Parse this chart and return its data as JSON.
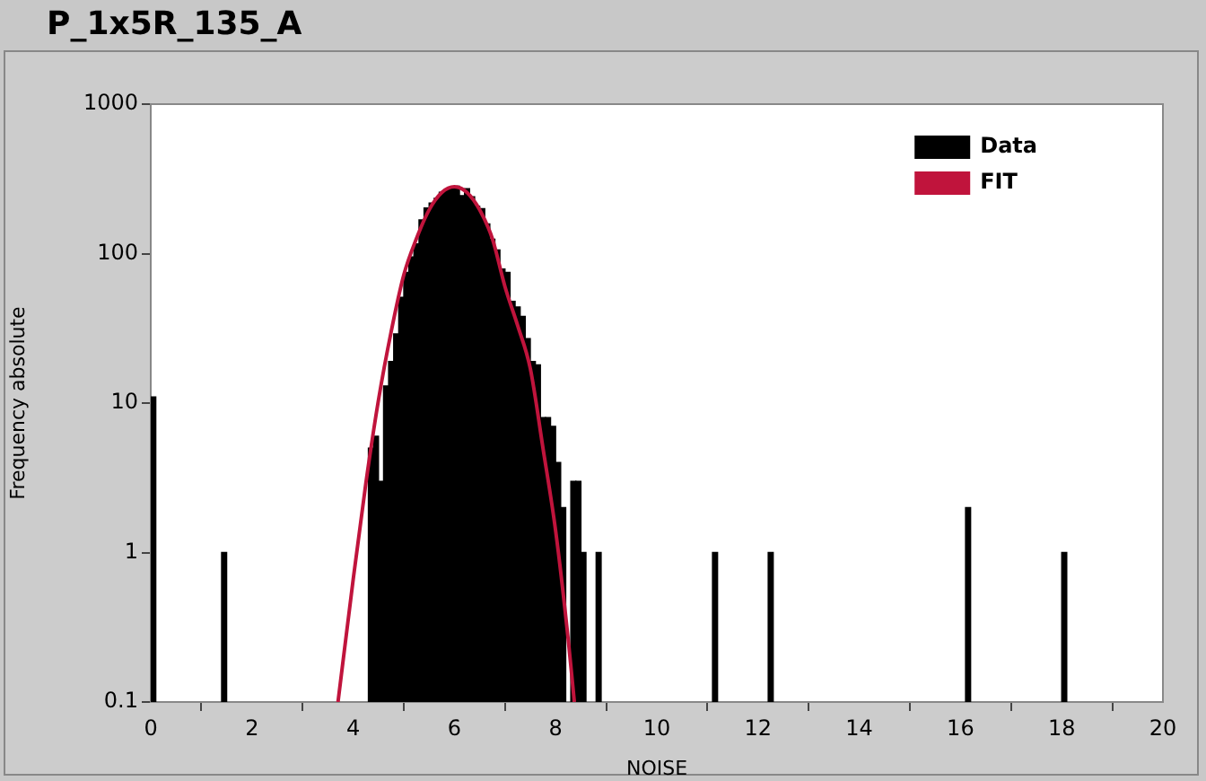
{
  "chart_data": {
    "type": "histogram",
    "title": "P_1x5R_135_A",
    "xlabel": "NOISE",
    "ylabel": "Frequency absolute",
    "log": "y",
    "legend": "top right",
    "xlim": [
      0,
      20
    ],
    "xticks": [
      0,
      2,
      4,
      6,
      8,
      10,
      12,
      14,
      16,
      18,
      20
    ],
    "ylim": [
      0.1,
      1000
    ],
    "yticks": [
      0.1,
      1,
      10,
      100,
      1000
    ],
    "bins": [
      0,
      0.1,
      1.4,
      1.5,
      4.3,
      4.4,
      4.5,
      4.6,
      4.7,
      4.8,
      4.9,
      5.0,
      5.1,
      5.2,
      5.3,
      5.4,
      5.5,
      5.6,
      5.7,
      5.8,
      5.9,
      6.0,
      6.1,
      6.2,
      6.3,
      6.4,
      6.5,
      6.6,
      6.7,
      6.8,
      6.9,
      7.0,
      7.1,
      7.2,
      7.3,
      7.4,
      7.5,
      7.6,
      7.7,
      7.8,
      7.9,
      8.0,
      8.1,
      8.2,
      8.3,
      8.4,
      8.5,
      8.6,
      8.8,
      8.9,
      11.1,
      11.2,
      12.2,
      12.3,
      16.1,
      16.2,
      18.0,
      18.1
    ],
    "series": [
      {
        "name": "Data",
        "color": "#000000",
        "values": [
          11,
          null,
          1,
          null,
          5,
          6,
          3,
          13,
          19,
          29,
          51,
          75,
          95,
          116,
          168,
          202,
          218,
          234,
          257,
          267,
          275,
          282,
          244,
          272,
          240,
          208,
          200,
          158,
          125,
          106,
          79,
          75,
          48,
          44,
          38,
          27,
          19,
          18,
          8,
          8,
          7,
          4,
          2,
          null,
          3,
          3,
          1,
          null,
          1,
          null,
          1,
          null,
          1,
          null,
          2,
          null,
          1
        ]
      },
      {
        "name": "FIT",
        "type": "line",
        "color": "#c0143c",
        "x": [
          3.7,
          4.0,
          4.25,
          4.5,
          4.75,
          5.0,
          5.25,
          5.5,
          5.75,
          6.0,
          6.25,
          6.5,
          6.75,
          7.0,
          7.25,
          7.5,
          7.75,
          8.0,
          8.25,
          8.37
        ],
        "values": [
          0.1,
          0.66,
          2.9,
          10.5,
          30,
          72,
          126,
          196,
          256,
          280,
          256,
          196,
          126,
          60,
          33,
          17,
          5,
          1.4,
          0.26,
          0.1
        ]
      }
    ]
  }
}
